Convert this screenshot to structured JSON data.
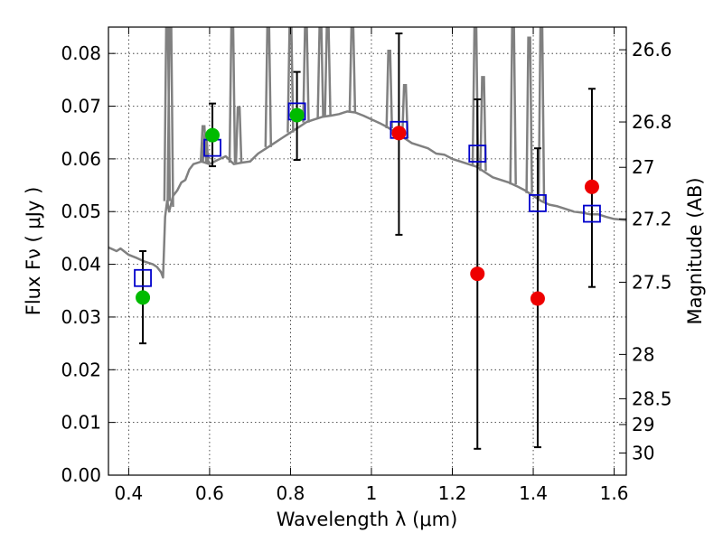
{
  "chart_data": {
    "type": "scatter",
    "xlabel": "Wavelength  λ (μm)",
    "ylabel": "Flux  Fν  ( μJy )",
    "ylabel_right": "Magnitude (AB)",
    "xlim": [
      0.35,
      1.63
    ],
    "ylim": [
      0.0,
      0.085
    ],
    "grid": true,
    "x_ticks": [
      0.4,
      0.6,
      0.8,
      1.0,
      1.2,
      1.4,
      1.6
    ],
    "x_tick_labels": [
      "0.4",
      "0.6",
      "0.8",
      "1",
      "1.2",
      "1.4",
      "1.6"
    ],
    "y_ticks": [
      0.0,
      0.01,
      0.02,
      0.03,
      0.04,
      0.05,
      0.06,
      0.07,
      0.08
    ],
    "y_tick_labels": [
      "0.00",
      "0.01",
      "0.02",
      "0.03",
      "0.04",
      "0.05",
      "0.06",
      "0.07",
      "0.08"
    ],
    "right_ticks": [
      {
        "flux": 0.0807,
        "label": "26.6"
      },
      {
        "flux": 0.067,
        "label": "26.8"
      },
      {
        "flux": 0.0584,
        "label": "27"
      },
      {
        "flux": 0.0486,
        "label": "27.2"
      },
      {
        "flux": 0.0366,
        "label": "27.5"
      },
      {
        "flux": 0.0229,
        "label": "28"
      },
      {
        "flux": 0.0145,
        "label": "28.5"
      },
      {
        "flux": 0.0096,
        "label": "29"
      },
      {
        "flux": 0.0042,
        "label": "30"
      }
    ],
    "colors": {
      "model": "#808080",
      "green": "#00bb00",
      "red": "#ee0000",
      "box": "#0000cc",
      "errorbar": "#000000"
    },
    "series": [
      {
        "name": "model spectrum",
        "kind": "line",
        "x": [
          0.35,
          0.37,
          0.38,
          0.4,
          0.42,
          0.44,
          0.46,
          0.47,
          0.48,
          0.485,
          0.49,
          0.495,
          0.5,
          0.51,
          0.52,
          0.53,
          0.54,
          0.55,
          0.56,
          0.58,
          0.6,
          0.62,
          0.64,
          0.66,
          0.68,
          0.7,
          0.72,
          0.74,
          0.76,
          0.78,
          0.8,
          0.82,
          0.84,
          0.86,
          0.88,
          0.9,
          0.92,
          0.94,
          0.96,
          0.98,
          1.0,
          1.02,
          1.04,
          1.06,
          1.08,
          1.1,
          1.12,
          1.14,
          1.16,
          1.18,
          1.2,
          1.22,
          1.24,
          1.26,
          1.28,
          1.3,
          1.32,
          1.34,
          1.36,
          1.38,
          1.4,
          1.42,
          1.44,
          1.46,
          1.48,
          1.5,
          1.52,
          1.54,
          1.56,
          1.58,
          1.6,
          1.63
        ],
        "y": [
          0.0432,
          0.0425,
          0.043,
          0.0418,
          0.0412,
          0.0405,
          0.04,
          0.0395,
          0.0385,
          0.0375,
          0.049,
          0.052,
          0.05,
          0.053,
          0.054,
          0.0555,
          0.056,
          0.058,
          0.059,
          0.0595,
          0.059,
          0.0598,
          0.0605,
          0.059,
          0.0593,
          0.0595,
          0.061,
          0.062,
          0.063,
          0.064,
          0.065,
          0.066,
          0.067,
          0.0675,
          0.068,
          0.0682,
          0.0685,
          0.069,
          0.0688,
          0.0682,
          0.0675,
          0.0668,
          0.066,
          0.065,
          0.064,
          0.063,
          0.0625,
          0.062,
          0.061,
          0.0608,
          0.06,
          0.0595,
          0.059,
          0.0585,
          0.0575,
          0.0565,
          0.056,
          0.0555,
          0.0548,
          0.054,
          0.053,
          0.052,
          0.0513,
          0.051,
          0.0505,
          0.05,
          0.0498,
          0.0495,
          0.0495,
          0.049,
          0.0486,
          0.0484
        ]
      },
      {
        "name": "emission lines",
        "kind": "spikes",
        "x": [
          0.495,
          0.503,
          0.585,
          0.59,
          0.656,
          0.672,
          0.745,
          0.8,
          0.838,
          0.874,
          0.892,
          0.953,
          1.044,
          1.083,
          1.257,
          1.276,
          1.35,
          1.39,
          1.42
        ],
        "y": [
          0.085,
          0.085,
          0.0662,
          0.0645,
          0.085,
          0.0698,
          0.085,
          0.085,
          0.085,
          0.085,
          0.085,
          0.085,
          0.0805,
          0.074,
          0.085,
          0.0755,
          0.085,
          0.083,
          0.085
        ]
      },
      {
        "name": "model photometry",
        "kind": "open-squares",
        "x": [
          0.435,
          0.607,
          0.816,
          1.068,
          1.262,
          1.411,
          1.545
        ],
        "y": [
          0.0374,
          0.0621,
          0.069,
          0.0655,
          0.061,
          0.0516,
          0.0496
        ]
      },
      {
        "name": "detections",
        "kind": "filled-circles",
        "color": "green",
        "x": [
          0.435,
          0.607,
          0.816
        ],
        "y": [
          0.0337,
          0.0645,
          0.0683
        ]
      },
      {
        "name": "non-detections",
        "kind": "filled-circles",
        "color": "red",
        "x": [
          1.068,
          1.262,
          1.411,
          1.545
        ],
        "y": [
          0.0649,
          0.0382,
          0.0335,
          0.0547
        ]
      },
      {
        "name": "error bars",
        "kind": "errorbars",
        "x": [
          0.435,
          0.607,
          0.816,
          1.068,
          1.262,
          1.411,
          1.545
        ],
        "low": [
          0.025,
          0.0586,
          0.0598,
          0.0456,
          0.005,
          0.0053,
          0.0357
        ],
        "high": [
          0.0425,
          0.0705,
          0.0765,
          0.0838,
          0.0713,
          0.062,
          0.0733
        ]
      }
    ]
  }
}
